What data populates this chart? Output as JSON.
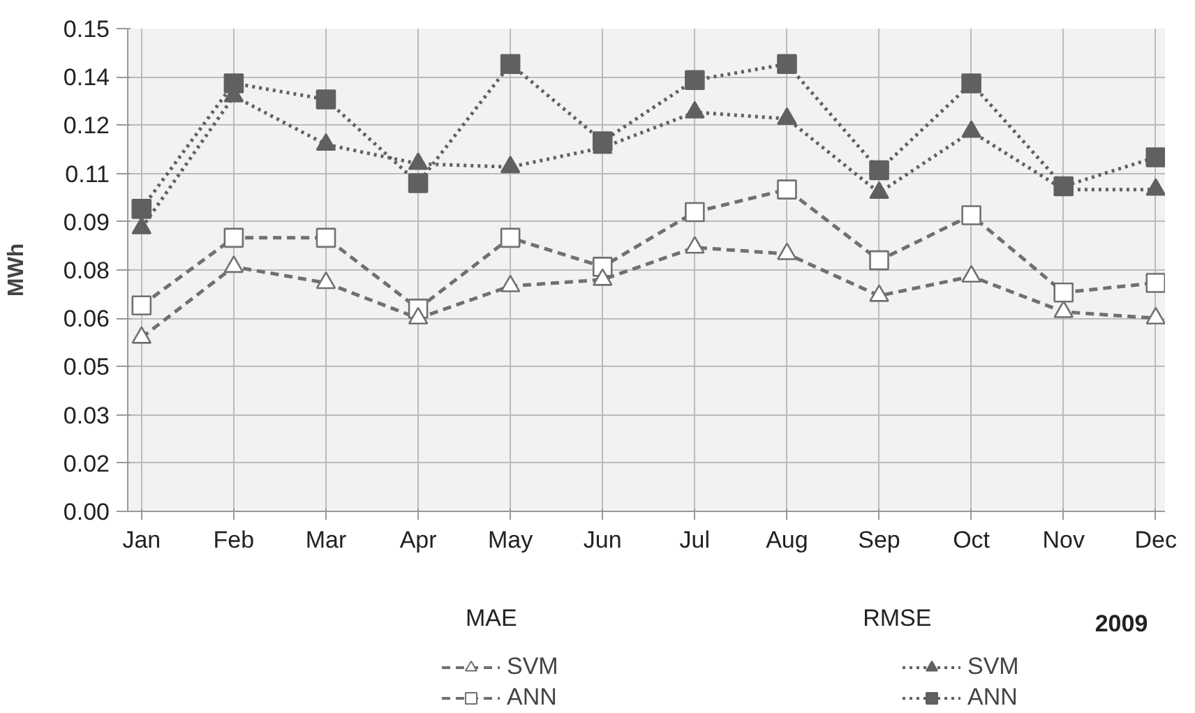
{
  "chart_data": {
    "type": "line",
    "ylabel": "MWh",
    "categories": [
      "Jan",
      "Feb",
      "Mar",
      "Apr",
      "May",
      "Jun",
      "Jul",
      "Aug",
      "Sep",
      "Oct",
      "Nov",
      "Dec"
    ],
    "ylim": [
      0,
      0.15
    ],
    "yticks": [
      {
        "value": 0,
        "label": "0.00"
      },
      {
        "value": 0.015,
        "label": "0.02"
      },
      0.03,
      {
        "value": 0.045,
        "label": "0.05"
      },
      0.06,
      {
        "value": 0.075,
        "label": "0.08"
      },
      0.09,
      {
        "value": 0.105,
        "label": "0.11"
      },
      0.12,
      {
        "value": 0.135,
        "label": "0.14"
      },
      0.15
    ],
    "grid": true,
    "legend": "bottom",
    "annotations": [
      "MAE",
      "RMSE",
      "2009"
    ],
    "series": [
      {
        "name": "SVM",
        "color": "#707070",
        "marker": "triangle",
        "line_style": "dashed",
        "values": [
          0.054,
          0.076,
          0.071,
          0.06,
          0.07,
          0.072,
          0.082,
          0.08,
          0.067,
          0.073,
          0.062,
          0.06
        ]
      },
      {
        "name": "ANN",
        "color": "#707070",
        "marker": "square",
        "line_style": "dashed",
        "values": [
          0.064,
          0.085,
          0.085,
          0.063,
          0.085,
          0.076,
          0.093,
          0.1,
          0.078,
          0.092,
          0.068,
          0.071
        ]
      },
      {
        "name": "SVM",
        "color": "#606060",
        "marker": "triangle",
        "line_style": "dotted",
        "values": [
          0.088,
          0.129,
          0.114,
          0.108,
          0.107,
          0.113,
          0.124,
          0.122,
          0.099,
          0.118,
          0.1,
          0.1
        ]
      },
      {
        "name": "ANN",
        "color": "#606060",
        "marker": "square",
        "line_style": "dotted",
        "values": [
          0.094,
          0.133,
          0.128,
          0.102,
          0.139,
          0.115,
          0.134,
          0.139,
          0.106,
          0.133,
          0.101,
          0.11
        ]
      }
    ]
  }
}
